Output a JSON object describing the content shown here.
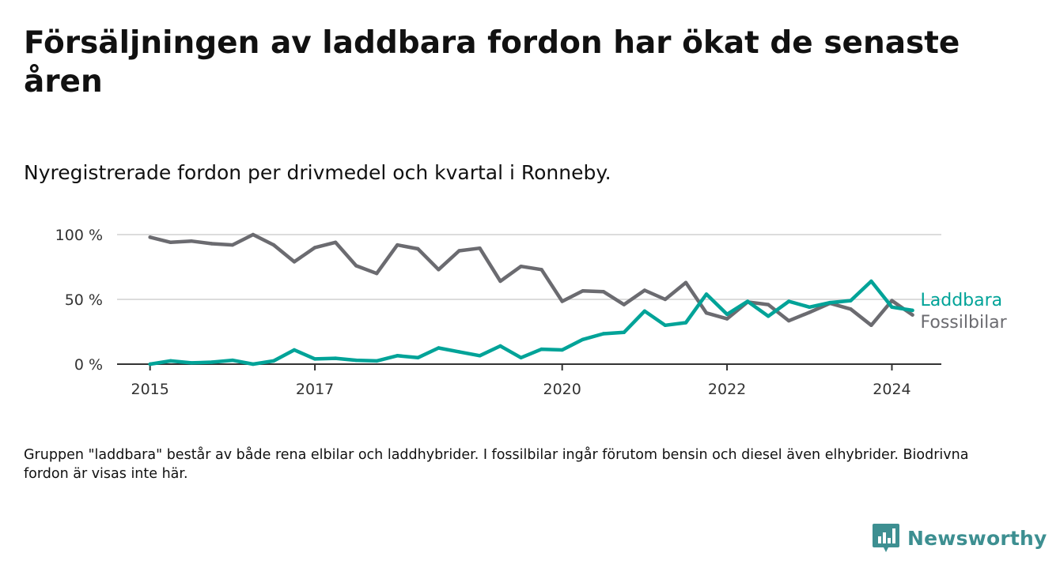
{
  "title": "Försäljningen av laddbara fordon har ökat de senaste åren",
  "subtitle": "Nyregistrerade fordon per drivmedel och kvartal i Ronneby.",
  "footnote": "Gruppen \"laddbara\" består av både rena elbilar och laddhybrider. I fossilbilar ingår förutom bensin och diesel även elhybrider. Biodrivna fordon är visas inte här.",
  "brand": {
    "name": "Newsworthy",
    "icon": "newsworthy-logo-icon"
  },
  "colors": {
    "laddbara": "#00a398",
    "fossilbilar": "#6b6b70",
    "grid": "#dcdcdc",
    "axis": "#333333",
    "brand": "#3d8f91"
  },
  "chart_data": {
    "type": "line",
    "title": "Nyregistrerade fordon per drivmedel och kvartal i Ronneby.",
    "xlabel": "",
    "ylabel": "",
    "x_start": 2015.0,
    "x_step": 0.25,
    "xlim": [
      2014.6,
      2024.6
    ],
    "ylim": [
      0,
      100
    ],
    "x_ticks": [
      2015,
      2017,
      2020,
      2022,
      2024
    ],
    "x_tick_labels": [
      "2015",
      "2017",
      "2020",
      "2022",
      "2024"
    ],
    "y_ticks": [
      0,
      50,
      100
    ],
    "y_tick_labels": [
      "0 %",
      "50 %",
      "100 %"
    ],
    "grid": true,
    "legend": "direct-labels-right",
    "series": [
      {
        "name": "Laddbara",
        "color_key": "laddbara",
        "values": [
          0,
          2.5,
          1,
          1.5,
          3,
          0,
          2.5,
          11,
          4,
          4.5,
          3,
          2.5,
          6.5,
          5,
          12.5,
          9.5,
          6.5,
          14,
          5,
          11.5,
          11,
          19,
          23.5,
          24.5,
          41,
          30,
          32,
          54,
          38.5,
          48.5,
          37,
          48.5,
          44,
          47.5,
          49,
          64,
          44,
          41.5
        ]
      },
      {
        "name": "Fossilbilar",
        "color_key": "fossilbilar",
        "values": [
          98,
          94,
          95,
          93,
          92,
          100,
          92,
          79,
          90,
          94,
          76,
          70,
          92,
          89,
          73,
          87.5,
          89.5,
          64,
          75.5,
          73,
          48.5,
          56.5,
          56,
          46,
          57,
          50,
          63,
          39.5,
          35,
          48,
          46,
          33.5,
          40,
          47,
          42.5,
          30,
          49,
          38
        ]
      }
    ]
  }
}
